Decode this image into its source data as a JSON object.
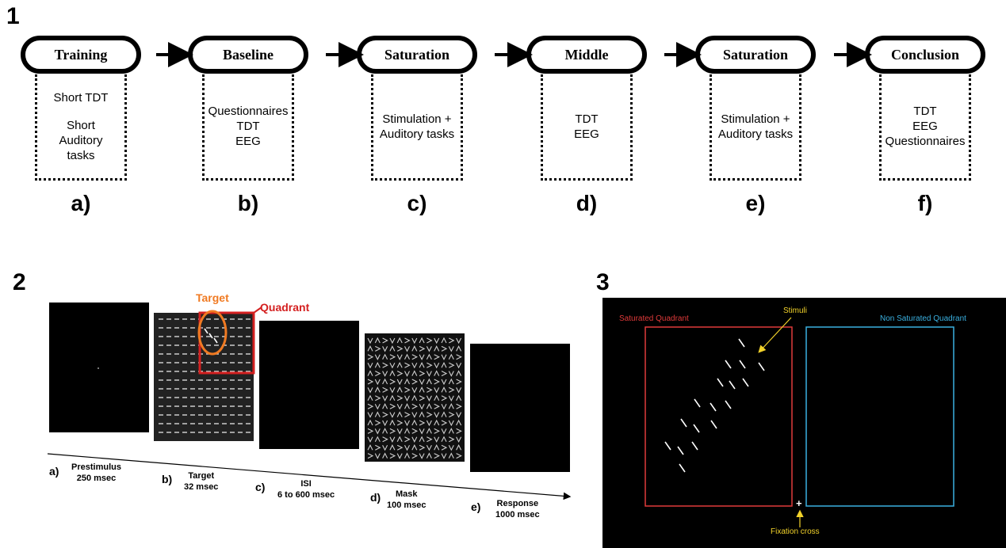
{
  "panel1": {
    "label": "1",
    "stages": [
      {
        "title": "Training",
        "content": [
          "Short TDT",
          "",
          "Short",
          "Auditory",
          "tasks"
        ],
        "letter": "a)"
      },
      {
        "title": "Baseline",
        "content": [
          "Questionnaires",
          "TDT",
          "EEG"
        ],
        "letter": "b)"
      },
      {
        "title": "Saturation",
        "content": [
          "Stimulation +",
          "Auditory tasks"
        ],
        "letter": "c)"
      },
      {
        "title": "Middle",
        "content": [
          "TDT",
          "EEG"
        ],
        "letter": "d)"
      },
      {
        "title": "Saturation",
        "content": [
          "Stimulation +",
          "Auditory tasks"
        ],
        "letter": "e)"
      },
      {
        "title": "Conclusion",
        "content": [
          "TDT",
          "EEG",
          "Questionnaires"
        ],
        "letter": "f)"
      }
    ]
  },
  "panel2": {
    "label": "2",
    "target_label": "Target",
    "quadrant_label": "Quadrant",
    "target_color": "#f07a22",
    "quadrant_color": "#d42020",
    "captions": [
      {
        "letter": "a)",
        "lines": [
          "Prestimulus",
          "250 msec"
        ]
      },
      {
        "letter": "b)",
        "lines": [
          "Target",
          "32 msec"
        ]
      },
      {
        "letter": "c)",
        "lines": [
          "ISI",
          "6 to 600 msec"
        ]
      },
      {
        "letter": "d)",
        "lines": [
          "Mask",
          "100 msec"
        ]
      },
      {
        "letter": "e)",
        "lines": [
          "Response",
          "1000 msec"
        ]
      }
    ]
  },
  "panel3": {
    "label": "3",
    "saturated_label": "Saturated Quadrant",
    "non_saturated_label": "Non Saturated Quadrant",
    "stimuli_label": "Stimuli",
    "fixation_label": "Fixation cross",
    "fixation_glyph": "+",
    "saturated_color": "#e03a3a",
    "non_saturated_color": "#3ab0e0",
    "annotation_color": "#f2d22a"
  }
}
